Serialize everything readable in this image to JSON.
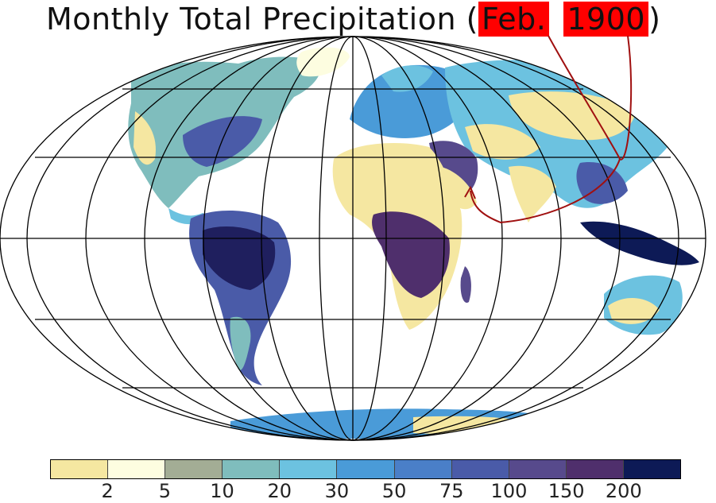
{
  "title": {
    "main": "Monthly Total Precipitation",
    "open_paren": "(",
    "month": "Feb.",
    "year": "1900",
    "close_paren": ")",
    "highlight_color": "#ff0000"
  },
  "map": {
    "projection": "mollweide",
    "graticule_color": "#000000",
    "land_base_color": "#f5e7a1",
    "ocean_color": "#ffffff",
    "annotation": {
      "type": "arrow",
      "color": "#a01010",
      "from": "title-month-year",
      "to": "arabian-peninsula"
    }
  },
  "legend": {
    "colors": [
      "#f5e7a1",
      "#fdfde0",
      "#a3ad95",
      "#7fbdbd",
      "#6cc2e0",
      "#4a9bd8",
      "#4a7fc8",
      "#4a5ba8",
      "#574a8c",
      "#4f2f6c",
      "#0d1a56"
    ],
    "ticks": [
      "2",
      "5",
      "10",
      "20",
      "30",
      "50",
      "75",
      "100",
      "150",
      "200"
    ]
  }
}
